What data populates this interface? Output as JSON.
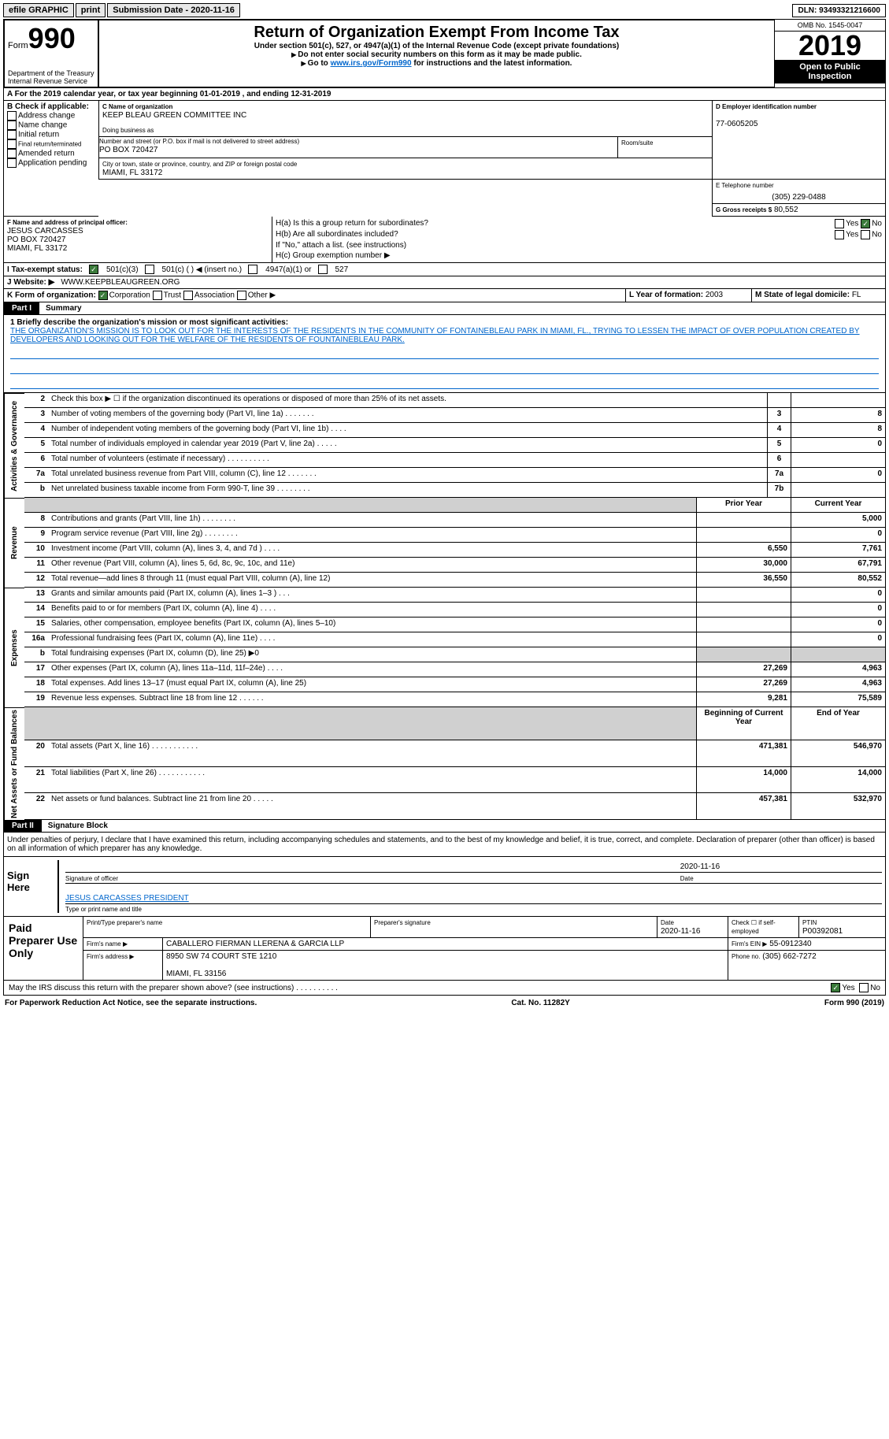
{
  "topbar": {
    "efile": "efile GRAPHIC",
    "print": "print",
    "submission": "Submission Date - 2020-11-16",
    "dln": "DLN: 93493321216600"
  },
  "header": {
    "form": "Form",
    "form_num": "990",
    "dept": "Department of the Treasury\nInternal Revenue Service",
    "title": "Return of Organization Exempt From Income Tax",
    "subtitle": "Under section 501(c), 527, or 4947(a)(1) of the Internal Revenue Code (except private foundations)",
    "nossn": "Do not enter social security numbers on this form as it may be made public.",
    "goto_pre": "Go to ",
    "goto_link": "www.irs.gov/Form990",
    "goto_post": " for instructions and the latest information.",
    "omb": "OMB No. 1545-0047",
    "year": "2019",
    "otpi": "Open to Public Inspection"
  },
  "period": "For the 2019 calendar year, or tax year beginning 01-01-2019    , and ending 12-31-2019",
  "boxB": {
    "label": "B Check if applicable:",
    "items": [
      "Address change",
      "Name change",
      "Initial return",
      "Final return/terminated",
      "Amended return",
      "Application pending"
    ]
  },
  "boxC": {
    "c_label": "C Name of organization",
    "c_value": "KEEP BLEAU GREEN COMMITTEE INC",
    "dba_label": "Doing business as",
    "addr_label": "Number and street (or P.O. box if mail is not delivered to street address)",
    "addr_room": "Room/suite",
    "addr_value": "PO BOX 720427",
    "city_label": "City or town, state or province, country, and ZIP or foreign postal code",
    "city_value": "MIAMI, FL  33172"
  },
  "boxD": {
    "label": "D Employer identification number",
    "value": "77-0605205"
  },
  "boxE": {
    "label": "E Telephone number",
    "value": "(305) 229-0488"
  },
  "boxG": {
    "label": "G Gross receipts $",
    "value": "80,552"
  },
  "boxF": {
    "label": "F  Name and address of principal officer:",
    "name": "JESUS CARCASSES",
    "addr1": "PO BOX 720427",
    "addr2": "MIAMI, FL  33172"
  },
  "boxH": {
    "a_label": "H(a)  Is this a group return for subordinates?",
    "b_label": "H(b)  Are all subordinates included?",
    "b_note": "If \"No,\" attach a list. (see instructions)",
    "c_label": "H(c)  Group exemption number ▶",
    "yes": "Yes",
    "no": "No"
  },
  "rowI": {
    "label": "I   Tax-exempt status:",
    "opts": [
      "501(c)(3)",
      "501(c) (  ) ◀ (insert no.)",
      "4947(a)(1) or",
      "527"
    ]
  },
  "rowJ": {
    "label": "J   Website: ▶",
    "value": "WWW.KEEPBLEAUGREEN.ORG"
  },
  "rowK": {
    "label": "K Form of organization:",
    "opts": [
      "Corporation",
      "Trust",
      "Association",
      "Other ▶"
    ]
  },
  "rowL": {
    "label": "L Year of formation:",
    "value": "2003"
  },
  "rowM": {
    "label": "M State of legal domicile:",
    "value": "FL"
  },
  "part1": {
    "part": "Part I",
    "title": "Summary"
  },
  "mission": {
    "label": "1   Briefly describe the organization's mission or most significant activities:",
    "text": "THE ORGANIZATION'S MISSION IS TO LOOK OUT FOR THE INTERESTS OF THE RESIDENTS IN THE COMMUNITY OF FONTAINEBLEAU PARK IN MIAMI, FL., TRYING TO LESSEN THE IMPACT OF OVER POPULATION CREATED BY DEVELOPERS AND LOOKING OUT FOR THE WELFARE OF THE RESIDENTS OF FOUNTAINEBLEAU PARK."
  },
  "gov_rows": [
    {
      "n": "2",
      "d": "Check this box ▶ ☐  if the organization discontinued its operations or disposed of more than 25% of its net assets.",
      "box": "",
      "v": ""
    },
    {
      "n": "3",
      "d": "Number of voting members of the governing body (Part VI, line 1a)   .    .    .    .    .    .    .",
      "box": "3",
      "v": "8"
    },
    {
      "n": "4",
      "d": "Number of independent voting members of the governing body (Part VI, line 1b)   .    .    .    .",
      "box": "4",
      "v": "8"
    },
    {
      "n": "5",
      "d": "Total number of individuals employed in calendar year 2019 (Part V, line 2a)   .    .    .    .    .",
      "box": "5",
      "v": "0"
    },
    {
      "n": "6",
      "d": "Total number of volunteers (estimate if necessary)    .    .    .    .    .    .    .    .    .    .",
      "box": "6",
      "v": ""
    },
    {
      "n": "7a",
      "d": "Total unrelated business revenue from Part VIII, column (C), line 12   .    .    .    .    .    .    .",
      "box": "7a",
      "v": "0"
    },
    {
      "n": "b",
      "d": "Net unrelated business taxable income from Form 990-T, line 39    .    .    .    .    .    .    .    .",
      "box": "7b",
      "v": ""
    }
  ],
  "side_labels": {
    "gov": "Activities & Governance",
    "rev": "Revenue",
    "exp": "Expenses",
    "net": "Net Assets or Fund Balances"
  },
  "rev_header": {
    "prior": "Prior Year",
    "curr": "Current Year"
  },
  "rev_rows": [
    {
      "n": "8",
      "d": "Contributions and grants (Part VIII, line 1h)    .    .    .    .    .    .    .    .",
      "p": "",
      "c": "5,000"
    },
    {
      "n": "9",
      "d": "Program service revenue (Part VIII, line 2g)    .    .    .    .    .    .    .    .",
      "p": "",
      "c": "0"
    },
    {
      "n": "10",
      "d": "Investment income (Part VIII, column (A), lines 3, 4, and 7d )    .    .    .     .",
      "p": "6,550",
      "c": "7,761"
    },
    {
      "n": "11",
      "d": "Other revenue (Part VIII, column (A), lines 5, 6d, 8c, 9c, 10c, and 11e)",
      "p": "30,000",
      "c": "67,791"
    },
    {
      "n": "12",
      "d": "Total revenue—add lines 8 through 11 (must equal Part VIII, column (A), line 12)",
      "p": "36,550",
      "c": "80,552"
    }
  ],
  "exp_rows": [
    {
      "n": "13",
      "d": "Grants and similar amounts paid (Part IX, column (A), lines 1–3 )   .    .    .",
      "p": "",
      "c": "0"
    },
    {
      "n": "14",
      "d": "Benefits paid to or for members (Part IX, column (A), line 4)   .    .    .    .",
      "p": "",
      "c": "0"
    },
    {
      "n": "15",
      "d": "Salaries, other compensation, employee benefits (Part IX, column (A), lines 5–10)",
      "p": "",
      "c": "0"
    },
    {
      "n": "16a",
      "d": "Professional fundraising fees (Part IX, column (A), line 11e)   .    .    .    .",
      "p": "",
      "c": "0"
    },
    {
      "n": "b",
      "d": "Total fundraising expenses (Part IX, column (D), line 25) ▶0",
      "p": "shaded",
      "c": "shaded"
    },
    {
      "n": "17",
      "d": "Other expenses (Part IX, column (A), lines 11a–11d, 11f–24e)   .    .    .    .",
      "p": "27,269",
      "c": "4,963"
    },
    {
      "n": "18",
      "d": "Total expenses. Add lines 13–17 (must equal Part IX, column (A), line 25)",
      "p": "27,269",
      "c": "4,963"
    },
    {
      "n": "19",
      "d": "Revenue less expenses. Subtract line 18 from line 12   .    .    .    .    .    .",
      "p": "9,281",
      "c": "75,589"
    }
  ],
  "net_header": {
    "beg": "Beginning of Current Year",
    "end": "End of Year"
  },
  "net_rows": [
    {
      "n": "20",
      "d": "Total assets (Part X, line 16)   .    .    .    .    .    .    .    .    .    .    .",
      "p": "471,381",
      "c": "546,970"
    },
    {
      "n": "21",
      "d": "Total liabilities (Part X, line 26)   .    .    .    .    .    .    .    .    .    .    .",
      "p": "14,000",
      "c": "14,000"
    },
    {
      "n": "22",
      "d": "Net assets or fund balances. Subtract line 21 from line 20   .    .    .    .    .",
      "p": "457,381",
      "c": "532,970"
    }
  ],
  "part2": {
    "part": "Part II",
    "title": "Signature Block"
  },
  "sig": {
    "declare": "Under penalties of perjury, I declare that I have examined this return, including accompanying schedules and statements, and to the best of my knowledge and belief, it is true, correct, and complete. Declaration of preparer (other than officer) is based on all information of which preparer has any knowledge.",
    "sign_here": "Sign Here",
    "sig_officer": "Signature of officer",
    "date_label": "Date",
    "date_value": "2020-11-16",
    "name_title": "JESUS CARCASSES  PRESIDENT",
    "name_label": "Type or print name and title"
  },
  "prep": {
    "label": "Paid Preparer Use Only",
    "r1": {
      "c1": "Print/Type preparer's name",
      "c2": "Preparer's signature",
      "c3_l": "Date",
      "c3_v": "2020-11-16",
      "c4_l": "Check ☐  if self-employed",
      "c5_l": "PTIN",
      "c5_v": "P00392081"
    },
    "r2": {
      "c1": "Firm's name    ▶",
      "c2": "CABALLERO FIERMAN LLERENA & GARCIA LLP",
      "c3_l": "Firm's EIN ▶",
      "c3_v": "55-0912340"
    },
    "r3": {
      "c1": "Firm's address ▶",
      "c2": "8950 SW 74 COURT STE 1210",
      "c3_l": "Phone no.",
      "c3_v": "(305) 662-7272"
    },
    "r3b": "MIAMI, FL  33156"
  },
  "discuss": {
    "q": "May the IRS discuss this return with the preparer shown above? (see instructions)    .    .    .    .    .    .    .    .    .    .",
    "yes": "Yes",
    "no": "No"
  },
  "footer": {
    "l": "For Paperwork Reduction Act Notice, see the separate instructions.",
    "m": "Cat. No. 11282Y",
    "r": "Form 990 (2019)"
  }
}
